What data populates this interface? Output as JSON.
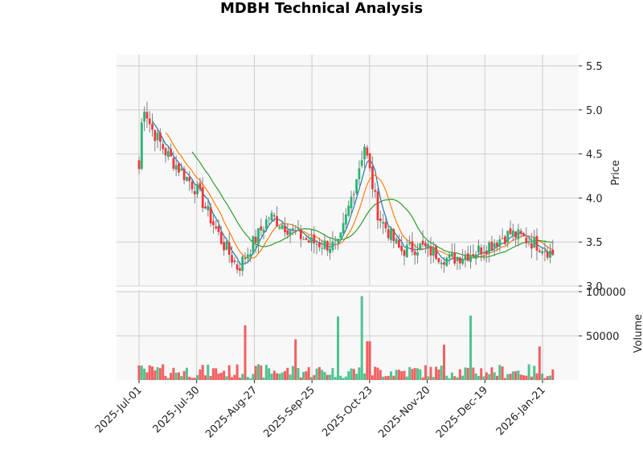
{
  "title": "MDBH Technical Analysis",
  "colors": {
    "up": "#26b574",
    "down": "#f0393b",
    "sma_short": "#1f77b4",
    "sma_mid": "#ff7f0e",
    "sma_long": "#2ca02c",
    "panel_bg": "#f8f8f8",
    "grid": "#cccccc",
    "wick": "#808080"
  },
  "chart_data": [
    {
      "type": "candlestick",
      "title": "MDBH Technical Analysis",
      "ylabel": "Price",
      "ylim": [
        3.0,
        5.6
      ],
      "yticks": [
        3.0,
        3.5,
        4.0,
        4.5,
        5.0,
        5.5
      ],
      "xticks": [
        "2025-Jul-01",
        "2025-Jul-30",
        "2025-Aug-27",
        "2025-Sep-25",
        "2025-Oct-23",
        "2025-Nov-20",
        "2025-Dec-19",
        "2026-Jan-21"
      ],
      "grid": true,
      "y_axis_position": "right",
      "overlays": [
        "short moving average (blue)",
        "medium moving average (orange)",
        "long moving average (green)"
      ],
      "approx_close_path": [
        {
          "date": "2025-Jul-01",
          "close": 4.33
        },
        {
          "date": "2025-Jul-03",
          "close": 5.1
        },
        {
          "date": "2025-Jul-07",
          "close": 4.8
        },
        {
          "date": "2025-Jul-15",
          "close": 4.5
        },
        {
          "date": "2025-Jul-30",
          "close": 4.1
        },
        {
          "date": "2025-Aug-12",
          "close": 3.5
        },
        {
          "date": "2025-Aug-20",
          "close": 3.2
        },
        {
          "date": "2025-Sep-05",
          "close": 3.8
        },
        {
          "date": "2025-Sep-25",
          "close": 3.5
        },
        {
          "date": "2025-Oct-10",
          "close": 3.45
        },
        {
          "date": "2025-Oct-23",
          "close": 4.6
        },
        {
          "date": "2025-Oct-30",
          "close": 3.8
        },
        {
          "date": "2025-Nov-10",
          "close": 3.4
        },
        {
          "date": "2025-Nov-20",
          "close": 3.45
        },
        {
          "date": "2025-Dec-05",
          "close": 3.3
        },
        {
          "date": "2025-Dec-19",
          "close": 3.4
        },
        {
          "date": "2026-Jan-05",
          "close": 3.6
        },
        {
          "date": "2026-Jan-21",
          "close": 3.45
        },
        {
          "date": "2026-Jan-27",
          "close": 3.35
        }
      ]
    },
    {
      "type": "bar",
      "ylabel": "Volume",
      "ylim": [
        0,
        100000
      ],
      "yticks": [
        50000,
        100000
      ],
      "notable_bars": [
        {
          "date": "2025-Aug-23",
          "volume": 62000,
          "direction": "up"
        },
        {
          "date": "2025-Sep-18",
          "volume": 46000,
          "direction": "down"
        },
        {
          "date": "2025-Oct-10",
          "volume": 72000,
          "direction": "up"
        },
        {
          "date": "2025-Oct-22",
          "volume": 95000,
          "direction": "up"
        },
        {
          "date": "2025-Oct-25",
          "volume": 44000,
          "direction": "down"
        },
        {
          "date": "2025-Dec-02",
          "volume": 40000,
          "direction": "up"
        },
        {
          "date": "2025-Dec-16",
          "volume": 73000,
          "direction": "down"
        },
        {
          "date": "2026-Jan-20",
          "volume": 38000,
          "direction": "down"
        }
      ]
    }
  ],
  "axes": {
    "price_label": "Price",
    "volume_label": "Volume",
    "price_ticks": [
      "3.0",
      "3.5",
      "4.0",
      "4.5",
      "5.0",
      "5.5"
    ],
    "volume_ticks": [
      "50000",
      "100000"
    ],
    "x_ticks": [
      "2025-Jul-01",
      "2025-Jul-30",
      "2025-Aug-27",
      "2025-Sep-25",
      "2025-Oct-23",
      "2025-Nov-20",
      "2025-Dec-19",
      "2026-Jan-21"
    ]
  }
}
